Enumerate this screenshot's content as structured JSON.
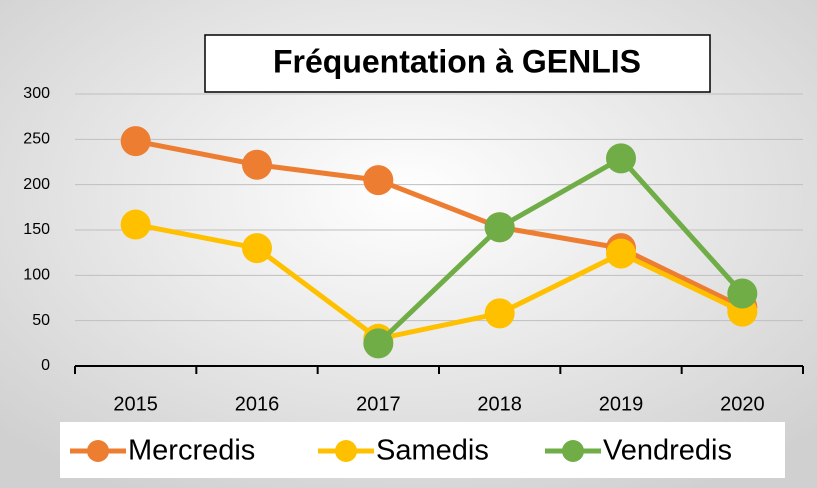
{
  "chart_data": {
    "type": "line",
    "title": "Fréquentation à GENLIS",
    "categories": [
      "2015",
      "2016",
      "2017",
      "2018",
      "2019",
      "2020"
    ],
    "series": [
      {
        "name": "Mercredis",
        "color": "#ed7d31",
        "values": [
          248,
          222,
          205,
          153,
          130,
          65
        ]
      },
      {
        "name": "Samedis",
        "color": "#ffc000",
        "values": [
          156,
          130,
          30,
          58,
          124,
          60
        ]
      },
      {
        "name": "Vendredis",
        "color": "#70ad47",
        "values": [
          null,
          null,
          25,
          153,
          229,
          80
        ]
      }
    ],
    "ylim": [
      0,
      300
    ],
    "yticks": [
      0,
      50,
      100,
      150,
      200,
      250,
      300
    ],
    "grid": true,
    "legend": "bottom"
  }
}
